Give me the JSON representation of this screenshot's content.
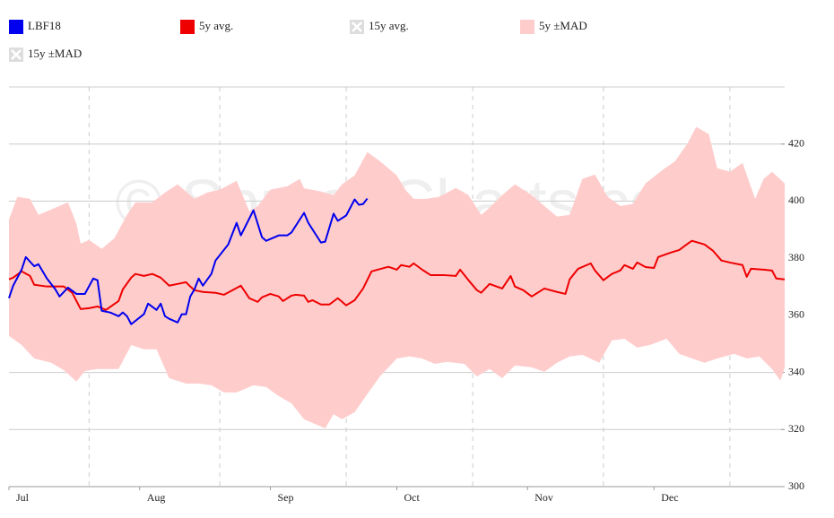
{
  "chart_data": {
    "type": "line",
    "watermark": "© SpreadCharts.com",
    "xlim": [
      0,
      184
    ],
    "xticks": [
      {
        "value": 0,
        "label": "Jul"
      },
      {
        "value": 31,
        "label": "Aug"
      },
      {
        "value": 62,
        "label": "Sep"
      },
      {
        "value": 92,
        "label": "Oct"
      },
      {
        "value": 123,
        "label": "Nov"
      },
      {
        "value": 153,
        "label": "Dec"
      }
    ],
    "xgrid": [
      19,
      50,
      80,
      110,
      141,
      171
    ],
    "ylim": [
      300,
      440
    ],
    "yticks": [
      300,
      320,
      340,
      360,
      380,
      400,
      420
    ],
    "grid": true,
    "series": [
      {
        "name": "LBF18",
        "color": "#0000ee",
        "x": [
          0,
          1,
          3,
          4,
          6,
          7,
          9,
          11,
          12,
          14,
          16,
          18,
          20,
          21,
          22,
          24,
          26,
          27,
          28,
          29,
          32,
          33,
          35,
          36,
          37,
          38,
          40,
          41,
          42,
          43,
          44,
          45,
          46,
          48,
          49,
          52,
          54,
          55,
          58,
          60,
          61,
          64,
          66,
          67,
          70,
          71,
          74,
          75,
          77,
          78,
          80,
          82,
          83,
          84,
          85
        ],
        "values": [
          366.0,
          370.4,
          376.0,
          380.4,
          377.2,
          377.9,
          372.9,
          369.1,
          366.6,
          369.7,
          367.5,
          367.5,
          372.9,
          372.3,
          361.6,
          361.0,
          359.7,
          361.0,
          359.7,
          356.9,
          360.4,
          364.1,
          361.9,
          364.1,
          359.7,
          358.8,
          357.5,
          360.4,
          360.4,
          366.6,
          369.1,
          372.9,
          370.4,
          374.5,
          379.2,
          384.8,
          392.4,
          388.0,
          396.8,
          387.4,
          386.1,
          388.0,
          388.0,
          389.0,
          395.9,
          392.4,
          385.5,
          385.8,
          395.6,
          393.1,
          395.0,
          400.6,
          398.7,
          399.0,
          400.9
        ]
      },
      {
        "name": "5y avg.",
        "color": "#ee0000",
        "x": [
          0,
          1,
          3,
          5,
          6,
          9,
          11,
          13,
          15,
          17,
          19,
          21,
          23,
          26,
          27,
          29,
          30,
          32,
          34,
          36,
          38,
          40,
          42,
          43,
          44,
          46,
          49,
          51,
          53,
          55,
          57,
          59,
          60,
          62,
          64,
          65,
          67,
          68,
          70,
          71,
          72,
          74,
          76,
          78,
          80,
          82,
          84,
          86,
          90,
          92,
          93,
          95,
          96,
          98,
          100,
          103,
          106,
          107,
          109,
          111,
          112,
          114,
          117,
          119,
          120,
          122,
          124,
          127,
          130,
          132,
          133,
          135,
          138,
          139,
          141,
          143,
          145,
          146,
          148,
          149,
          151,
          153,
          154,
          157,
          159,
          161,
          162,
          165,
          167,
          169,
          171,
          174,
          175,
          176,
          179,
          181,
          182,
          184
        ],
        "values": [
          372.6,
          373.2,
          375.4,
          373.8,
          370.7,
          370.1,
          370.1,
          370.1,
          367.9,
          362.2,
          362.5,
          363.1,
          361.9,
          365.0,
          369.1,
          373.2,
          374.5,
          373.8,
          374.5,
          373.2,
          370.4,
          371.0,
          371.6,
          370.1,
          368.8,
          368.2,
          367.9,
          367.2,
          368.8,
          370.4,
          366.0,
          364.7,
          366.3,
          367.5,
          366.6,
          365.0,
          366.9,
          367.2,
          366.9,
          364.7,
          365.3,
          363.8,
          363.8,
          366.0,
          363.5,
          365.3,
          369.4,
          375.4,
          377.0,
          376.0,
          377.6,
          377.0,
          378.2,
          376.0,
          374.1,
          374.1,
          373.8,
          376.0,
          372.3,
          368.8,
          367.9,
          371.0,
          369.4,
          373.8,
          370.1,
          368.8,
          366.6,
          369.4,
          368.2,
          367.5,
          372.6,
          376.3,
          378.2,
          375.7,
          372.3,
          374.5,
          375.7,
          377.6,
          376.3,
          378.5,
          376.9,
          376.6,
          380.4,
          382.0,
          382.9,
          385.1,
          386.1,
          384.8,
          382.6,
          379.2,
          378.5,
          377.6,
          373.5,
          376.3,
          376.0,
          375.7,
          372.9,
          372.6
        ]
      },
      {
        "name": "15y avg.",
        "visible": false
      },
      {
        "name": "5y ±MAD",
        "color": "#ffcccc",
        "kind": "band",
        "upper": {
          "x": [
            0,
            2,
            5,
            7,
            11,
            14,
            16,
            17,
            19,
            22,
            25,
            28,
            30,
            34,
            37,
            40,
            44,
            47,
            50,
            54,
            57,
            59,
            62,
            66,
            69,
            70,
            74,
            77,
            79,
            82,
            85,
            88,
            92,
            94,
            96,
            99,
            102,
            106,
            109,
            112,
            114,
            117,
            120,
            124,
            127,
            130,
            133,
            136,
            139,
            142,
            145,
            148,
            151,
            155,
            158,
            161,
            163,
            166,
            168,
            171,
            174,
            177,
            179,
            181,
            184
          ],
          "values": [
            393.6,
            401.5,
            400.8,
            395.2,
            397.7,
            399.6,
            392.1,
            385.1,
            386.4,
            383.3,
            387.0,
            395.2,
            399.6,
            399.6,
            403.0,
            405.9,
            400.8,
            403.0,
            404.0,
            407.1,
            396.5,
            398.3,
            404.0,
            405.2,
            407.8,
            404.5,
            403.4,
            402.1,
            405.9,
            409.0,
            417.2,
            414.0,
            409.0,
            404.0,
            400.8,
            400.8,
            401.5,
            404.6,
            402.1,
            395.2,
            397.7,
            402.1,
            405.9,
            402.1,
            398.3,
            394.6,
            395.2,
            407.8,
            409.3,
            401.5,
            398.3,
            399.0,
            406.2,
            410.9,
            414.0,
            420.3,
            426.0,
            423.5,
            411.5,
            410.3,
            413.4,
            400.8,
            407.8,
            410.3,
            406.2
          ]
        },
        "lower": {
          "x": [
            0,
            3,
            6,
            10,
            13,
            16,
            18,
            21,
            26,
            29,
            32,
            35,
            38,
            42,
            45,
            48,
            51,
            54,
            58,
            61,
            64,
            67,
            70,
            75,
            77,
            79,
            82,
            85,
            88,
            92,
            95,
            98,
            101,
            104,
            108,
            111,
            114,
            117,
            120,
            124,
            127,
            130,
            133,
            136,
            140,
            143,
            146,
            149,
            152,
            156,
            159,
            162,
            165,
            168,
            172,
            175,
            178,
            181,
            183,
            184
          ],
          "values": [
            352.8,
            349.6,
            344.9,
            343.4,
            340.8,
            336.8,
            340.5,
            341.2,
            341.2,
            349.6,
            348.1,
            348.1,
            338.0,
            336.1,
            336.1,
            335.5,
            333.0,
            333.0,
            335.5,
            334.9,
            331.7,
            329.2,
            323.6,
            320.4,
            325.4,
            323.6,
            326.1,
            332.4,
            338.6,
            344.9,
            345.6,
            344.9,
            343.0,
            343.7,
            343.0,
            338.6,
            341.2,
            338.0,
            342.4,
            341.8,
            340.2,
            343.4,
            345.6,
            346.2,
            343.4,
            351.2,
            351.8,
            348.7,
            349.6,
            351.8,
            346.5,
            344.9,
            343.4,
            344.9,
            346.5,
            344.9,
            345.6,
            341.2,
            337.1,
            341.8
          ]
        }
      },
      {
        "name": "15y ±MAD",
        "visible": false
      }
    ]
  }
}
